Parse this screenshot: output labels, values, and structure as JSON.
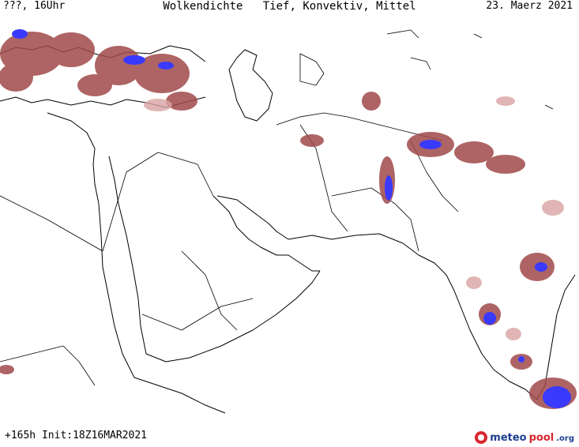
{
  "header": {
    "left": "???, 16Uhr",
    "title": "Wolkendichte   Tief, Konvektiv, Mittel",
    "date": "23. Maerz 2021"
  },
  "footer": {
    "run_info": "+165h Init:18Z16MAR2021"
  },
  "logo": {
    "meteo": "meteo",
    "pool": "pool",
    "org": ".org"
  },
  "colors": {
    "cloud_low": "#a0494a",
    "cloud_pink": "#d9a3a3",
    "cloud_high": "#3a3aff",
    "coast": "#000000"
  }
}
